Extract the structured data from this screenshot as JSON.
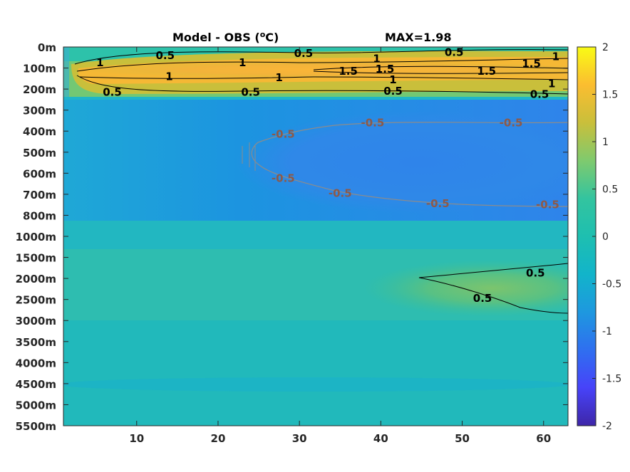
{
  "chart_data": {
    "type": "heatmap",
    "title_left": "Model - OBS (",
    "title_unit_sup": "o",
    "title_unit_tail": "C)",
    "title_max": "MAX=1.98",
    "x_ticks": [
      "10",
      "20",
      "30",
      "40",
      "50",
      "60"
    ],
    "x_tick_values": [
      10,
      20,
      30,
      40,
      50,
      60
    ],
    "xlim": [
      1,
      63
    ],
    "y_ticks": [
      "0m",
      "100m",
      "200m",
      "300m",
      "400m",
      "500m",
      "600m",
      "700m",
      "800m",
      "1000m",
      "1500m",
      "2000m",
      "2500m",
      "3000m",
      "3500m",
      "4000m",
      "4500m",
      "5000m",
      "5500m"
    ],
    "colorbar": {
      "ticks": [
        "2",
        "1.5",
        "1",
        "0.5",
        "0",
        "-0.5",
        "-1",
        "-1.5",
        "-2"
      ],
      "range": [
        -2,
        2
      ],
      "colormap": [
        "#3e26a8",
        "#4743f9",
        "#2f6ff0",
        "#1e98df",
        "#12b4ca",
        "#33c49f",
        "#7fca6e",
        "#c9bf3b",
        "#fbbd30",
        "#f5e519",
        "#f9fb15"
      ]
    },
    "contour_labels": [
      {
        "text": "1",
        "x": 5.5,
        "y": 0.75,
        "kind": "pos"
      },
      {
        "text": "0.5",
        "x": 13.5,
        "y": 0.4,
        "kind": "pos"
      },
      {
        "text": "1",
        "x": 14,
        "y": 1.4,
        "kind": "pos"
      },
      {
        "text": "1",
        "x": 23,
        "y": 0.75,
        "kind": "pos"
      },
      {
        "text": "0.5",
        "x": 30.5,
        "y": 0.3,
        "kind": "pos"
      },
      {
        "text": "1",
        "x": 27.5,
        "y": 1.45,
        "kind": "pos"
      },
      {
        "text": "1.5",
        "x": 36,
        "y": 1.15,
        "kind": "pos"
      },
      {
        "text": "1",
        "x": 39.5,
        "y": 0.55,
        "kind": "pos"
      },
      {
        "text": "1.5",
        "x": 40.5,
        "y": 1.05,
        "kind": "pos"
      },
      {
        "text": "1",
        "x": 41.5,
        "y": 1.55,
        "kind": "pos"
      },
      {
        "text": "0.5",
        "x": 49,
        "y": 0.25,
        "kind": "pos"
      },
      {
        "text": "1.5",
        "x": 53,
        "y": 1.15,
        "kind": "pos"
      },
      {
        "text": "1.5",
        "x": 58.5,
        "y": 0.8,
        "kind": "pos"
      },
      {
        "text": "1",
        "x": 61.5,
        "y": 0.45,
        "kind": "pos"
      },
      {
        "text": "1",
        "x": 61,
        "y": 1.75,
        "kind": "pos"
      },
      {
        "text": "0.5",
        "x": 7,
        "y": 2.15,
        "kind": "pos"
      },
      {
        "text": "0.5",
        "x": 24,
        "y": 2.15,
        "kind": "pos"
      },
      {
        "text": "0.5",
        "x": 41.5,
        "y": 2.1,
        "kind": "pos"
      },
      {
        "text": "0.5",
        "x": 59.5,
        "y": 2.25,
        "kind": "pos"
      },
      {
        "text": "-0.5",
        "x": 28,
        "y": 4.15,
        "kind": "neg"
      },
      {
        "text": "-0.5",
        "x": 39,
        "y": 3.6,
        "kind": "neg"
      },
      {
        "text": "-0.5",
        "x": 56,
        "y": 3.6,
        "kind": "neg"
      },
      {
        "text": "-0.5",
        "x": 28,
        "y": 6.25,
        "kind": "neg"
      },
      {
        "text": "-0.5",
        "x": 35,
        "y": 6.95,
        "kind": "neg"
      },
      {
        "text": "-0.5",
        "x": 47,
        "y": 7.45,
        "kind": "neg"
      },
      {
        "text": "-0.5",
        "x": 60.5,
        "y": 7.5,
        "kind": "neg"
      },
      {
        "text": "0.5",
        "x": 59,
        "y": 10.75,
        "kind": "pos"
      },
      {
        "text": "0.5",
        "x": 52.5,
        "y": 11.95,
        "kind": "pos"
      }
    ]
  }
}
